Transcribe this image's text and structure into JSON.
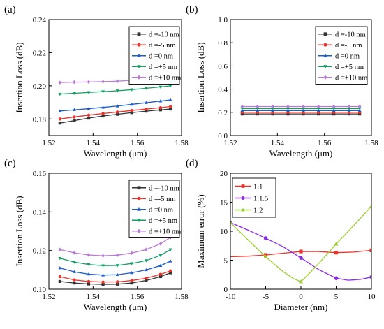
{
  "chart_data": [
    {
      "id": "a",
      "type": "line",
      "panel_label": "(a)",
      "xlabel": "Wavelength (μm)",
      "ylabel": "Insertion Loss (dB)",
      "xlim": [
        1.52,
        1.58
      ],
      "ylim": [
        0.17,
        0.24
      ],
      "xticks": [
        1.52,
        1.54,
        1.56,
        1.58
      ],
      "yticks": [
        0.18,
        0.2,
        0.22,
        0.24
      ],
      "legend_position": "top-right",
      "x": [
        1.525,
        1.5315,
        1.538,
        1.5445,
        1.551,
        1.5575,
        1.564,
        1.5705,
        1.575
      ],
      "series": [
        {
          "name": "d =-10 nm",
          "color": "#333333",
          "marker": "square",
          "values": [
            0.1775,
            0.179,
            0.1805,
            0.1818,
            0.1828,
            0.1838,
            0.1847,
            0.1855,
            0.186
          ]
        },
        {
          "name": "d =-5 nm",
          "color": "#e8342b",
          "marker": "circle",
          "values": [
            0.18,
            0.1812,
            0.1823,
            0.1833,
            0.1842,
            0.1851,
            0.186,
            0.1868,
            0.1875
          ]
        },
        {
          "name": "d =0 nm",
          "color": "#1f5cc8",
          "marker": "triangle-up",
          "values": [
            0.1848,
            0.1855,
            0.1862,
            0.187,
            0.1878,
            0.1888,
            0.1898,
            0.1908,
            0.1915
          ]
        },
        {
          "name": "d =+5 nm",
          "color": "#12a060",
          "marker": "triangle-down",
          "values": [
            0.195,
            0.1955,
            0.196,
            0.1965,
            0.197,
            0.1977,
            0.1985,
            0.1993,
            0.2
          ]
        },
        {
          "name": "d =+10 nm",
          "color": "#b87ad6",
          "marker": "diamond",
          "values": [
            0.202,
            0.2022,
            0.2023,
            0.2025,
            0.2028,
            0.2033,
            0.204,
            0.205,
            0.206
          ]
        }
      ]
    },
    {
      "id": "b",
      "type": "line",
      "panel_label": "(b)",
      "xlabel": "Wavelength (μm)",
      "ylabel": "Insertion Loss (dB)",
      "xlim": [
        1.52,
        1.58
      ],
      "ylim": [
        0.0,
        1.0
      ],
      "xticks": [
        1.52,
        1.54,
        1.56,
        1.58
      ],
      "yticks": [
        0.0,
        0.2,
        0.4,
        0.6,
        0.8,
        1.0
      ],
      "legend_position": "top-right",
      "x": [
        1.525,
        1.5315,
        1.538,
        1.5445,
        1.551,
        1.5575,
        1.564,
        1.5705,
        1.575
      ],
      "series": [
        {
          "name": "d =-10 nm",
          "color": "#333333",
          "marker": "square",
          "values": [
            0.186,
            0.186,
            0.186,
            0.186,
            0.186,
            0.186,
            0.186,
            0.186,
            0.186
          ]
        },
        {
          "name": "d =-5 nm",
          "color": "#e8342b",
          "marker": "circle",
          "values": [
            0.2,
            0.2,
            0.2,
            0.2,
            0.2,
            0.2,
            0.2,
            0.2,
            0.2
          ]
        },
        {
          "name": "d =0 nm",
          "color": "#1f5cc8",
          "marker": "triangle-up",
          "values": [
            0.215,
            0.215,
            0.215,
            0.215,
            0.215,
            0.215,
            0.215,
            0.215,
            0.215
          ]
        },
        {
          "name": "d =+5 nm",
          "color": "#12a060",
          "marker": "triangle-down",
          "values": [
            0.232,
            0.232,
            0.232,
            0.232,
            0.232,
            0.232,
            0.232,
            0.232,
            0.232
          ]
        },
        {
          "name": "d =+10 nm",
          "color": "#b87ad6",
          "marker": "diamond",
          "values": [
            0.25,
            0.25,
            0.25,
            0.25,
            0.25,
            0.25,
            0.25,
            0.25,
            0.25
          ]
        }
      ]
    },
    {
      "id": "c",
      "type": "line",
      "panel_label": "(c)",
      "xlabel": "Wavelength (μm)",
      "ylabel": "Insertion Loss (dB)",
      "xlim": [
        1.52,
        1.58
      ],
      "ylim": [
        0.1,
        0.16
      ],
      "xticks": [
        1.52,
        1.54,
        1.56,
        1.58
      ],
      "yticks": [
        0.1,
        0.12,
        0.14,
        0.16
      ],
      "legend_position": "top-right",
      "x": [
        1.525,
        1.5315,
        1.538,
        1.5445,
        1.551,
        1.5575,
        1.564,
        1.5705,
        1.575
      ],
      "series": [
        {
          "name": "d =-10 nm",
          "color": "#333333",
          "marker": "square",
          "values": [
            0.104,
            0.1032,
            0.1027,
            0.1025,
            0.1026,
            0.1032,
            0.1045,
            0.1065,
            0.1085
          ]
        },
        {
          "name": "d =-5 nm",
          "color": "#e8342b",
          "marker": "circle",
          "values": [
            0.1065,
            0.1048,
            0.104,
            0.1037,
            0.1038,
            0.1045,
            0.1057,
            0.1077,
            0.1095
          ]
        },
        {
          "name": "d =0 nm",
          "color": "#1f5cc8",
          "marker": "triangle-up",
          "values": [
            0.111,
            0.109,
            0.1078,
            0.1073,
            0.1075,
            0.1085,
            0.11,
            0.1122,
            0.1145
          ]
        },
        {
          "name": "d =+5 nm",
          "color": "#12a060",
          "marker": "triangle-down",
          "values": [
            0.116,
            0.114,
            0.1128,
            0.1122,
            0.1123,
            0.1133,
            0.1148,
            0.1175,
            0.1205
          ]
        },
        {
          "name": "d =+10 nm",
          "color": "#b87ad6",
          "marker": "diamond",
          "values": [
            0.1205,
            0.1188,
            0.1177,
            0.1173,
            0.1176,
            0.1187,
            0.1205,
            0.1235,
            0.1268
          ]
        }
      ]
    },
    {
      "id": "d",
      "type": "line",
      "panel_label": "(d)",
      "xlabel": "Diameter (nm)",
      "ylabel": "Maximum error (%)",
      "xlim": [
        -10,
        10
      ],
      "ylim": [
        0,
        20
      ],
      "xticks": [
        -10,
        -5,
        0,
        5,
        10
      ],
      "yticks": [
        0,
        5,
        10,
        15,
        20
      ],
      "legend_position": "top-left",
      "series": [
        {
          "name": "1:1",
          "color": "#e8342b",
          "marker": "square",
          "x": [
            -10,
            -7.5,
            -5,
            -2.5,
            0,
            2.5,
            5,
            7.5,
            10
          ],
          "values": [
            5.6,
            5.7,
            5.9,
            6.2,
            6.5,
            6.5,
            6.3,
            6.4,
            6.7
          ],
          "marker_x": [
            -5,
            0,
            5,
            10
          ]
        },
        {
          "name": "1:1.5",
          "color": "#8a2be2",
          "marker": "circle",
          "x": [
            -10,
            -7.5,
            -5,
            -2.5,
            0,
            2.5,
            5,
            6.7,
            8.5,
            10
          ],
          "values": [
            11.5,
            10.2,
            8.8,
            7.3,
            5.4,
            3.4,
            1.9,
            1.55,
            1.7,
            2.1
          ],
          "marker_x": [
            -10,
            -5,
            0,
            5,
            10
          ]
        },
        {
          "name": "1:2",
          "color": "#9acd32",
          "marker": "triangle-up",
          "x": [
            -10,
            -7.5,
            -5,
            -2.5,
            -1,
            0,
            1,
            2.5,
            5,
            7.5,
            10
          ],
          "values": [
            11.5,
            8.5,
            5.6,
            3.0,
            1.8,
            1.3,
            2.5,
            4.4,
            7.8,
            11.0,
            14.3
          ],
          "marker_x": [
            -10,
            -5,
            0,
            5,
            10
          ]
        }
      ]
    }
  ]
}
